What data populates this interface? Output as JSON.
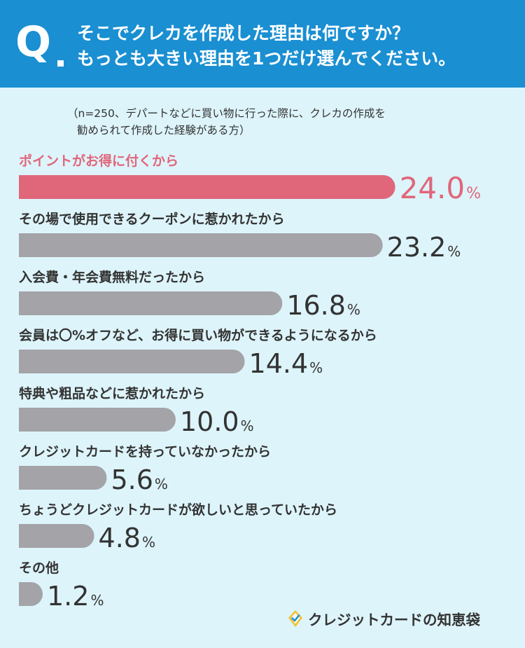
{
  "header": {
    "q_label": "Q",
    "question_line1": "そこでクレカを作成した理由は何ですか？",
    "question_line2": "もっとも大きい理由を1つだけ選んでください。"
  },
  "note": {
    "line1": "（n=250、デパートなどに買い物に行った際に、クレカの作成を",
    "line2": "勧められて作成した経験がある方）"
  },
  "logo": {
    "text": "クレジットカードの知恵袋",
    "icon": "diamond-check-icon"
  },
  "colors": {
    "header_bg": "#1a8fd2",
    "page_bg": "#ddf4fa",
    "highlight": "#e0667a",
    "bar": "#a3a3a8",
    "text": "#333333"
  },
  "chart_data": {
    "type": "bar",
    "orientation": "horizontal",
    "unit": "%",
    "categories": [
      "ポイントがお得に付くから",
      "その場で使用できるクーポンに惹かれたから",
      "入会費・年会費無料だったから",
      "会員は〇%オフなど、お得に買い物ができるようになるから",
      "特典や粗品などに惹かれたから",
      "クレジットカードを持っていなかったから",
      "ちょうどクレジットカードが欲しいと思っていたから",
      "その他"
    ],
    "values": [
      24.0,
      23.2,
      16.8,
      14.4,
      10.0,
      5.6,
      4.8,
      1.2
    ],
    "value_labels": [
      "24.0",
      "23.2",
      "16.8",
      "14.4",
      "10.0",
      "5.6",
      "4.8",
      "1.2"
    ],
    "highlight_index": 0
  }
}
